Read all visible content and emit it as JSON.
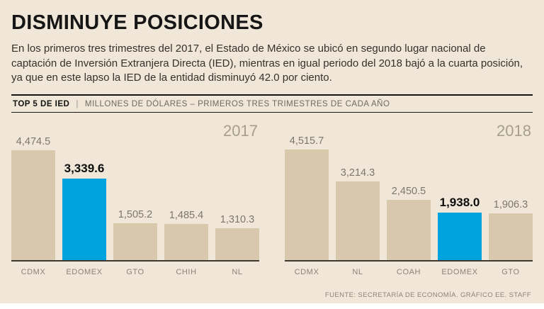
{
  "page": {
    "title": "DISMINUYE POSICIONES",
    "intro": "En los primeros tres trimestres del 2017, el Estado de México se ubicó en segundo lugar nacional de captación de Inversión Extranjera Directa (IED), mientras en igual periodo del 2018 bajó a la cuarta posición, ya que en este lapso la IED de la entidad disminuyó 42.0 por ciento.",
    "footer": "FUENTE: SECRETARÍA DE ECONOMÍA. GRÁFICO EE. STAFF"
  },
  "header_bar": {
    "label": "TOP 5 DE IED",
    "separator": "|",
    "subtitle": "MILLONES DE DÓLARES – PRIMEROS TRES TRIMESTRES DE CADA AÑO"
  },
  "colors": {
    "background": "#f0e7d8",
    "bar": "#d9c9ac",
    "highlight": "#00a3dd",
    "text_dark": "#2e2a26",
    "text_gray": "#7d766a"
  },
  "chart_data": [
    {
      "type": "bar",
      "year": "2017",
      "title": "TOP 5 DE IED 2017",
      "xlabel": "",
      "ylabel": "Millones de dólares",
      "categories": [
        "CDMX",
        "EDOMEX",
        "GTO",
        "CHIH",
        "NL"
      ],
      "values": [
        4474.5,
        3339.6,
        1505.2,
        1485.4,
        1310.3
      ],
      "value_labels": [
        "4,474.5",
        "3,339.6",
        "1,505.2",
        "1,485.4",
        "1,310.3"
      ],
      "highlight_index": 1,
      "ylim": [
        0,
        4515.7
      ],
      "grid": false,
      "legend": "none"
    },
    {
      "type": "bar",
      "year": "2018",
      "title": "TOP 5 DE IED 2018",
      "xlabel": "",
      "ylabel": "Millones de dólares",
      "categories": [
        "CDMX",
        "NL",
        "COAH",
        "EDOMEX",
        "GTO"
      ],
      "values": [
        4515.7,
        3214.3,
        2450.5,
        1938.0,
        1906.3
      ],
      "value_labels": [
        "4,515.7",
        "3,214.3",
        "2,450.5",
        "1,938.0",
        "1,906.3"
      ],
      "highlight_index": 3,
      "ylim": [
        0,
        4515.7
      ],
      "grid": false,
      "legend": "none"
    }
  ]
}
